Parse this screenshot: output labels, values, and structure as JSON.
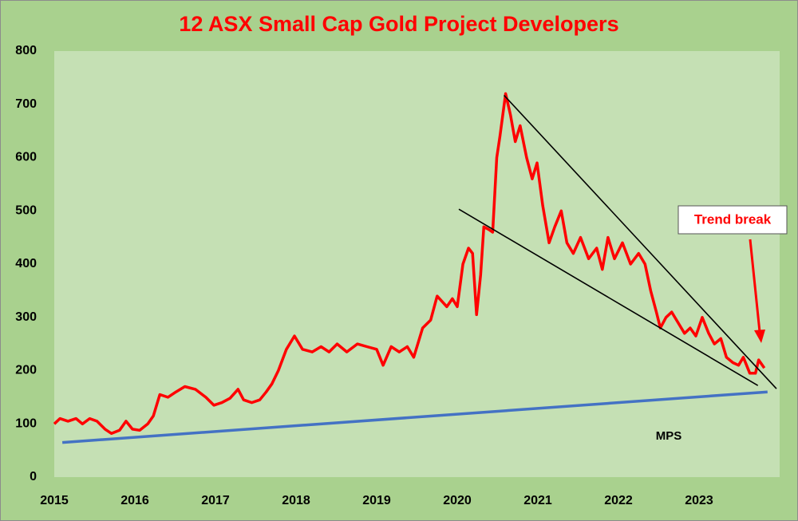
{
  "chart_data": {
    "type": "line",
    "title": "12 ASX Small Cap Gold Project Developers",
    "xlim": [
      2015,
      2024
    ],
    "xticks": [
      2015,
      2016,
      2017,
      2018,
      2019,
      2020,
      2021,
      2022,
      2023
    ],
    "ylim": [
      0,
      800
    ],
    "yticks": [
      0,
      100,
      200,
      300,
      400,
      500,
      600,
      700,
      800
    ],
    "series": [
      {
        "color": "#ff0000",
        "x": [
          2015.0,
          2015.07,
          2015.17,
          2015.27,
          2015.35,
          2015.44,
          2015.53,
          2015.63,
          2015.71,
          2015.81,
          2015.89,
          2015.97,
          2016.06,
          2016.16,
          2016.23,
          2016.31,
          2016.41,
          2016.51,
          2016.62,
          2016.75,
          2016.88,
          2016.98,
          2017.08,
          2017.18,
          2017.28,
          2017.35,
          2017.45,
          2017.55,
          2017.63,
          2017.7,
          2017.78,
          2017.88,
          2017.98,
          2018.08,
          2018.2,
          2018.31,
          2018.41,
          2018.51,
          2018.63,
          2018.76,
          2018.88,
          2019.0,
          2019.08,
          2019.18,
          2019.28,
          2019.38,
          2019.46,
          2019.57,
          2019.67,
          2019.75,
          2019.87,
          2019.94,
          2020.0,
          2020.07,
          2020.14,
          2020.19,
          2020.24,
          2020.29,
          2020.33,
          2020.39,
          2020.44,
          2020.49,
          2020.53,
          2020.6,
          2020.66,
          2020.72,
          2020.78,
          2020.86,
          2020.93,
          2020.99,
          2021.06,
          2021.14,
          2021.21,
          2021.29,
          2021.36,
          2021.44,
          2021.53,
          2021.63,
          2021.73,
          2021.8,
          2021.87,
          2021.95,
          2022.05,
          2022.15,
          2022.25,
          2022.33,
          2022.4,
          2022.47,
          2022.52,
          2022.59,
          2022.66,
          2022.74,
          2022.82,
          2022.89,
          2022.96,
          2023.04,
          2023.12,
          2023.19,
          2023.27,
          2023.34,
          2023.42,
          2023.49,
          2023.55,
          2023.63,
          2023.7,
          2023.74,
          2023.81
        ],
        "values": [
          100,
          110,
          105,
          110,
          100,
          110,
          105,
          90,
          82,
          88,
          105,
          90,
          88,
          100,
          115,
          155,
          150,
          160,
          170,
          165,
          150,
          135,
          140,
          148,
          165,
          145,
          140,
          145,
          160,
          175,
          200,
          240,
          265,
          240,
          235,
          245,
          235,
          250,
          235,
          250,
          245,
          240,
          210,
          245,
          235,
          245,
          225,
          280,
          295,
          340,
          320,
          335,
          320,
          400,
          430,
          420,
          305,
          380,
          470,
          465,
          460,
          600,
          640,
          720,
          680,
          630,
          660,
          600,
          560,
          590,
          510,
          440,
          470,
          500,
          440,
          420,
          450,
          410,
          430,
          390,
          450,
          410,
          440,
          400,
          420,
          400,
          350,
          310,
          280,
          300,
          310,
          290,
          270,
          280,
          265,
          300,
          270,
          250,
          260,
          225,
          215,
          210,
          225,
          195,
          195,
          220,
          205
        ]
      },
      {
        "name": "MPS",
        "color": "#4472c4",
        "x": [
          2015.1,
          2023.85
        ],
        "values": [
          65,
          160
        ]
      },
      {
        "color": "#000000",
        "x": [
          2020.58,
          2023.96
        ],
        "values": [
          717,
          166
        ]
      },
      {
        "color": "#000000",
        "x": [
          2020.02,
          2023.73
        ],
        "values": [
          503,
          172
        ]
      }
    ],
    "annotations": [
      "Trend break"
    ]
  }
}
